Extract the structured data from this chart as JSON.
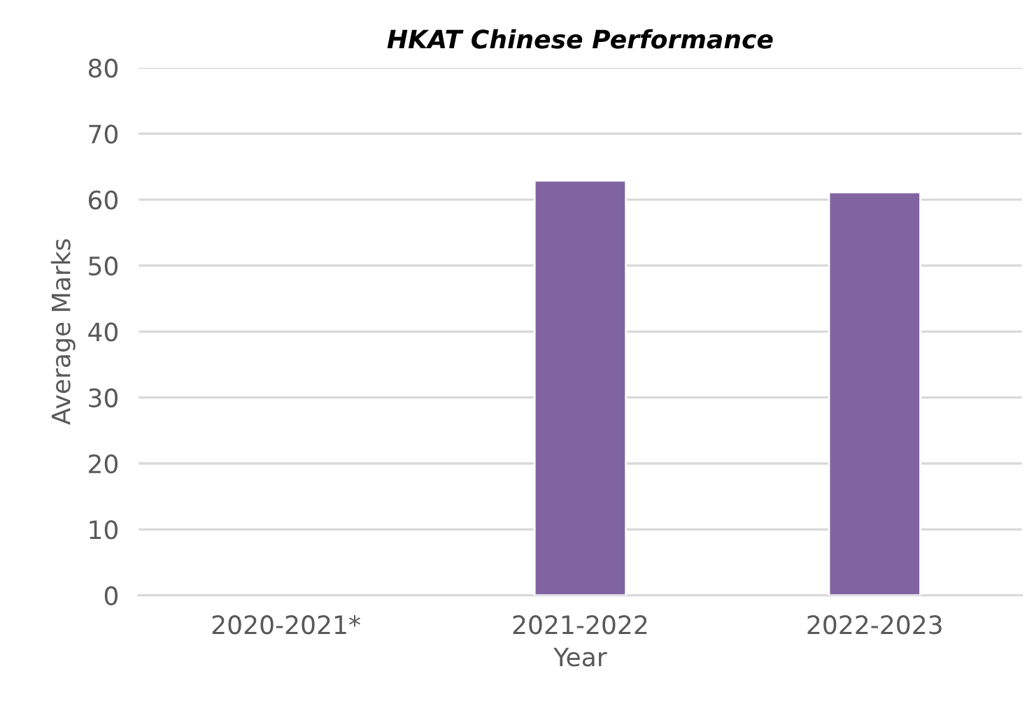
{
  "chart_data": {
    "type": "bar",
    "title": "HKAT Chinese Performance",
    "xlabel": "Year",
    "ylabel": "Average Marks",
    "categories": [
      "2020-2021*",
      "2021-2022",
      "2022-2023"
    ],
    "values": [
      null,
      62.9,
      61.1
    ],
    "color": "#8064a2",
    "ylim": [
      0,
      80
    ],
    "yticks": [
      0,
      10,
      20,
      30,
      40,
      50,
      60,
      70,
      80
    ],
    "grid": "y"
  }
}
